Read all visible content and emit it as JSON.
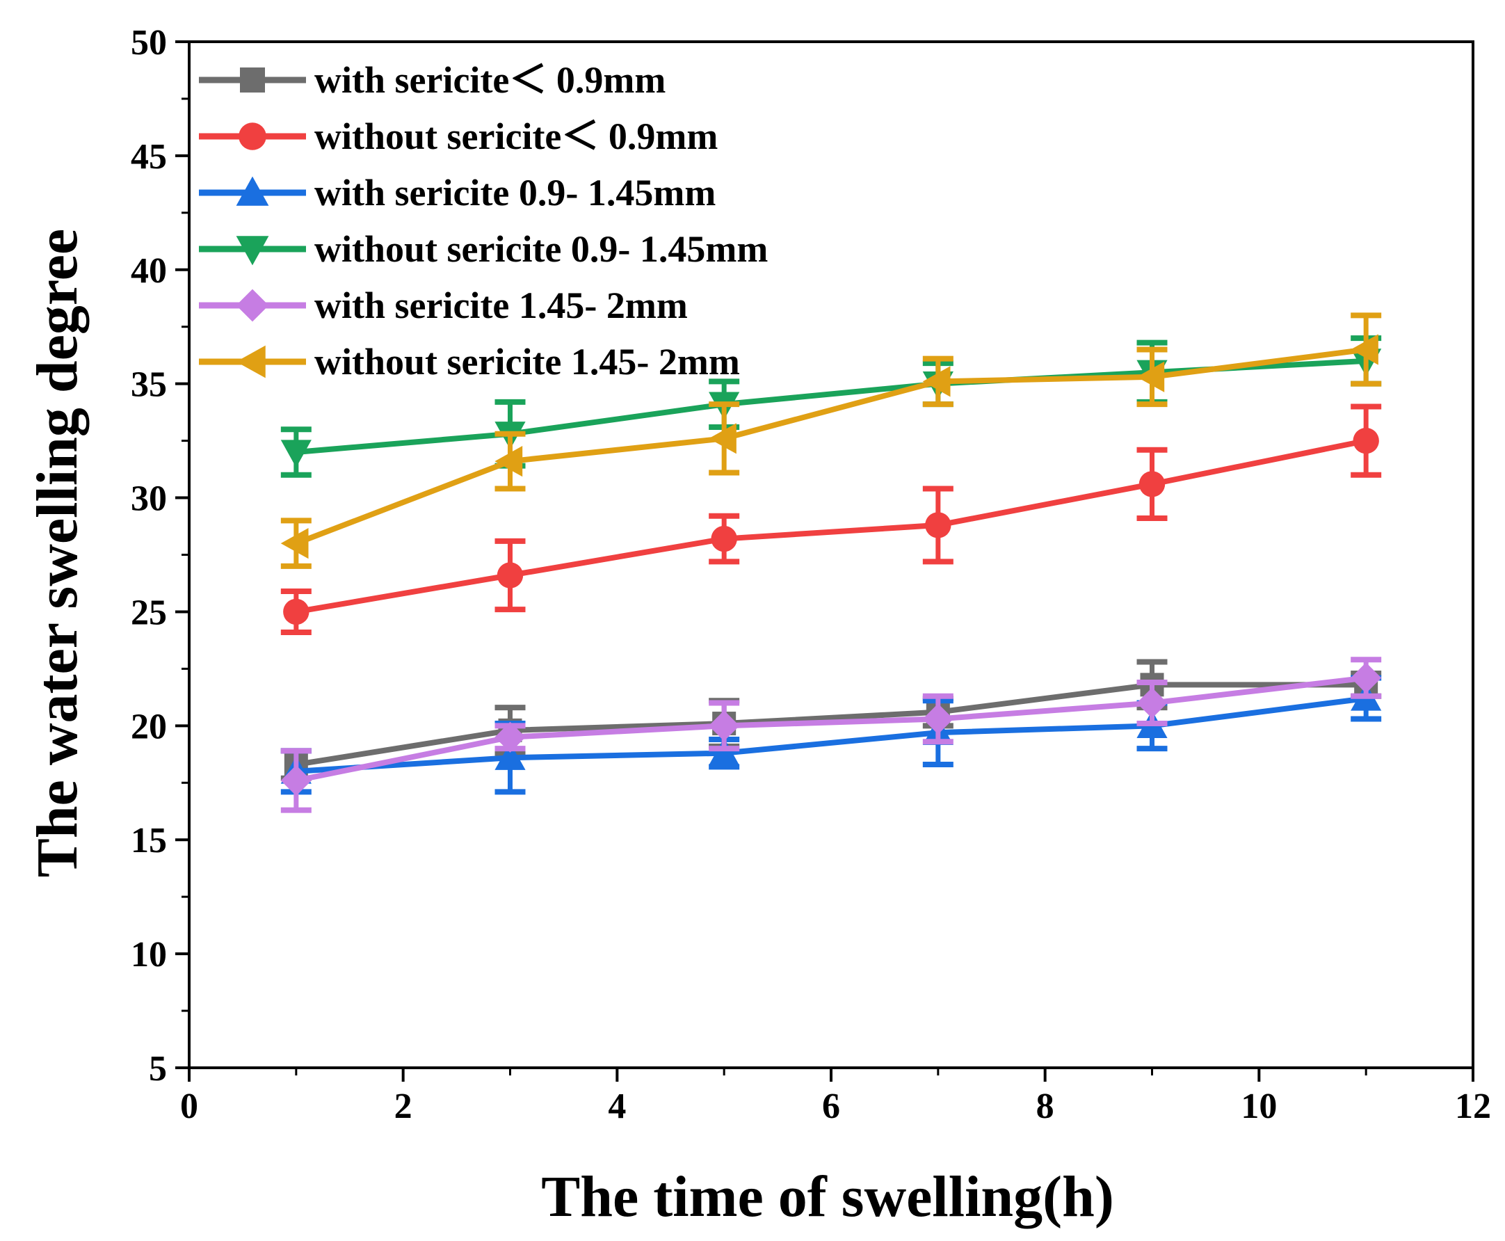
{
  "chart_data": {
    "type": "line",
    "xlabel": "The time of swelling(h)",
    "ylabel": "The water swelling degree",
    "xlim": [
      0,
      12
    ],
    "ylim": [
      5,
      50
    ],
    "xticks": [
      0,
      2,
      4,
      6,
      8,
      10,
      12
    ],
    "yticks": [
      5,
      10,
      15,
      20,
      25,
      30,
      35,
      40,
      45,
      50
    ],
    "grid": false,
    "legend_position": "top-left",
    "x": [
      1,
      3,
      5,
      7,
      9,
      11
    ],
    "series": [
      {
        "name": "with sericite＜ 0.9mm",
        "color": "#6d6d6d",
        "marker": "square",
        "values": [
          18.3,
          19.8,
          20.1,
          20.6,
          21.8,
          21.8
        ],
        "errors": [
          0.6,
          1.0,
          1.0,
          0.6,
          1.0,
          0.5
        ]
      },
      {
        "name": "without sericite＜ 0.9mm",
        "color": "#f04040",
        "marker": "circle",
        "values": [
          25.0,
          26.6,
          28.2,
          28.8,
          30.6,
          32.5
        ],
        "errors": [
          0.9,
          1.5,
          1.0,
          1.6,
          1.5,
          1.5
        ]
      },
      {
        "name": "with sericite 0.9- 1.45mm",
        "color": "#1a6fe0",
        "marker": "triangle-up",
        "values": [
          18.0,
          18.6,
          18.8,
          19.7,
          20.0,
          21.2
        ],
        "errors": [
          0.9,
          1.5,
          0.6,
          1.4,
          1.0,
          0.9
        ]
      },
      {
        "name": "without sericite 0.9- 1.45mm",
        "color": "#1aa35a",
        "marker": "triangle-down",
        "values": [
          32.0,
          32.8,
          34.1,
          35.0,
          35.5,
          36.0
        ],
        "errors": [
          1.0,
          1.4,
          1.0,
          0.9,
          1.3,
          1.0
        ]
      },
      {
        "name": "with sericite 1.45- 2mm",
        "color": "#c67de3",
        "marker": "diamond",
        "values": [
          17.6,
          19.5,
          20.0,
          20.3,
          21.0,
          22.1
        ],
        "errors": [
          1.3,
          0.5,
          1.0,
          1.0,
          0.9,
          0.8
        ]
      },
      {
        "name": "without sericite 1.45- 2mm",
        "color": "#e0a014",
        "marker": "triangle-left",
        "values": [
          28.0,
          31.6,
          32.6,
          35.1,
          35.3,
          36.5
        ],
        "errors": [
          1.0,
          1.2,
          1.5,
          1.0,
          1.2,
          1.5
        ]
      }
    ]
  }
}
